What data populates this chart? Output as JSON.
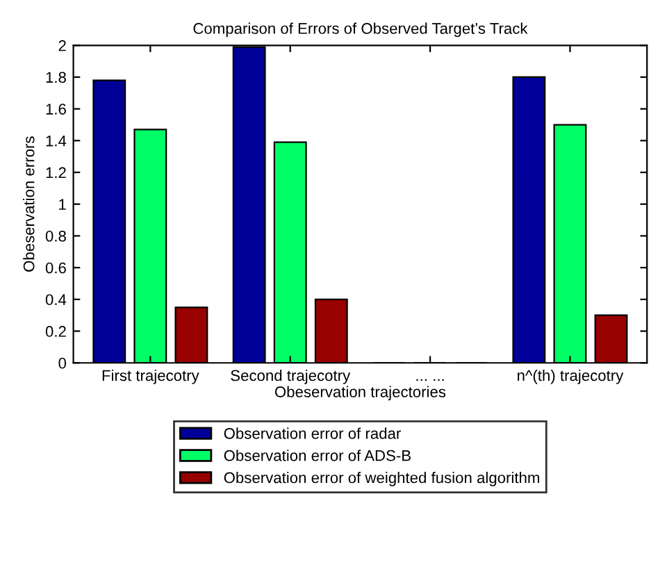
{
  "chart_data": {
    "type": "bar",
    "title": "Comparison of Errors of Observed Target’s Track",
    "xlabel": "Obeservation trajectories",
    "ylabel": "Obeservation errors",
    "categories": [
      "First trajecotry",
      "Second trajecotry",
      "... ...",
      "n^(th) trajecotry"
    ],
    "series": [
      {
        "name": "Observation error of radar",
        "color": "#000099",
        "values": [
          1.78,
          1.99,
          0,
          1.8
        ]
      },
      {
        "name": "Observation error of ADS-B",
        "color": "#00ff66",
        "values": [
          1.47,
          1.39,
          0,
          1.5
        ]
      },
      {
        "name": "Observation error of weighted fusion algorithm",
        "color": "#990000",
        "values": [
          0.35,
          0.4,
          0,
          0.3
        ]
      }
    ],
    "ylim": [
      0,
      2
    ],
    "yticks": [
      0,
      0.2,
      0.4,
      0.6,
      0.8,
      1,
      1.2,
      1.4,
      1.6,
      1.8,
      2
    ],
    "grid": false,
    "legend": "bottom"
  }
}
